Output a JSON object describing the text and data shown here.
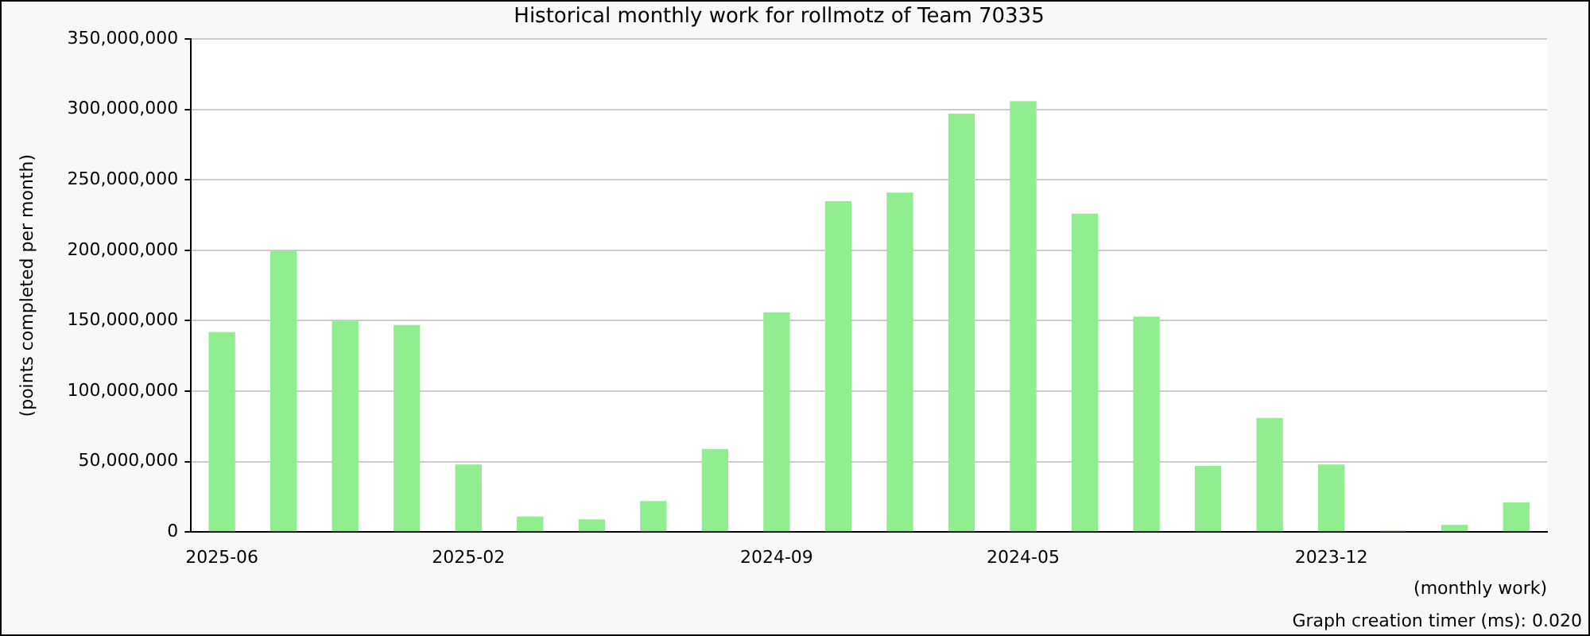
{
  "chart_data": {
    "type": "bar",
    "title": "Historical monthly work for rollmotz of Team 70335",
    "xlabel": "(monthly work)",
    "ylabel": "(points completed per month)",
    "categories": [
      "2025-06",
      null,
      null,
      null,
      "2025-02",
      null,
      null,
      null,
      null,
      "2024-09",
      null,
      null,
      null,
      "2024-05",
      null,
      null,
      null,
      null,
      "2023-12",
      null,
      null,
      null
    ],
    "values": [
      142000000,
      200000000,
      150000000,
      147000000,
      48000000,
      11000000,
      9000000,
      22000000,
      59000000,
      156000000,
      235000000,
      241000000,
      297000000,
      306000000,
      226000000,
      153000000,
      47000000,
      81000000,
      48000000,
      1000000,
      5000000,
      21000000
    ],
    "color": "#90ee90",
    "ylim": [
      0,
      350000000
    ],
    "yticks": [
      0,
      {
        "value": 50000000,
        "label": "50,000,000"
      },
      {
        "value": 100000000,
        "label": "100,000,000"
      },
      {
        "value": 150000000,
        "label": "150,000,000"
      },
      {
        "value": 200000000,
        "label": "200,000,000"
      },
      {
        "value": 250000000,
        "label": "250,000,000"
      },
      {
        "value": 300000000,
        "label": "300,000,000"
      },
      {
        "value": 350000000,
        "label": "350,000,000"
      }
    ],
    "grid": "y",
    "legend": false,
    "annotations": [
      "Graph creation timer (ms): 0.020"
    ]
  }
}
